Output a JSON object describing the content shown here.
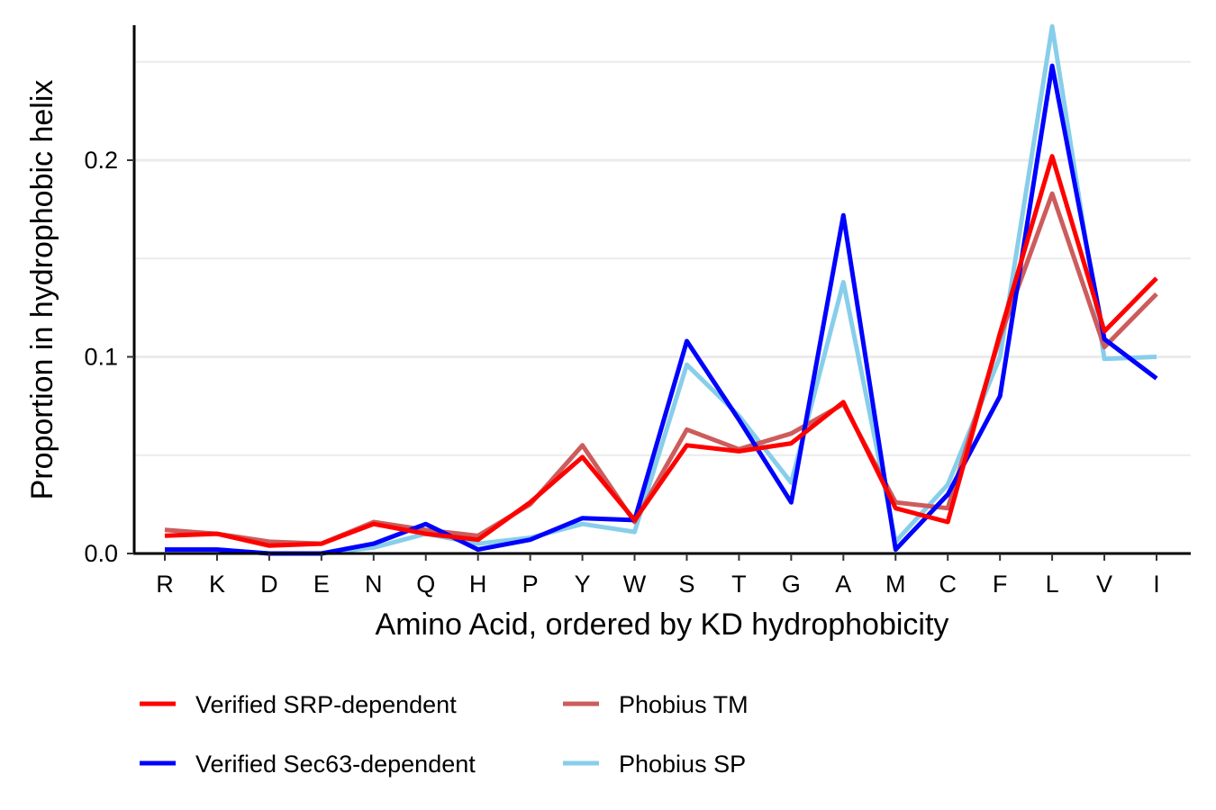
{
  "chart_data": {
    "type": "line",
    "xlabel": "Amino Acid, ordered by KD hydrophobicity",
    "ylabel": "Proportion in hydrophobic helix",
    "categories": [
      "R",
      "K",
      "D",
      "E",
      "N",
      "Q",
      "H",
      "P",
      "Y",
      "W",
      "S",
      "T",
      "G",
      "A",
      "M",
      "C",
      "F",
      "L",
      "V",
      "I"
    ],
    "ylim": [
      0,
      0.27
    ],
    "yticks": [
      0.0,
      0.1,
      0.2
    ],
    "ytick_labels": [
      "0.0",
      "0.1",
      "0.2"
    ],
    "grid": "horizontal major and minor",
    "legend_position": "bottom",
    "series": [
      {
        "name": "Phobius SP",
        "color": "#87CEEB",
        "values": [
          0.002,
          0.002,
          0.0,
          0.0,
          0.003,
          0.01,
          0.005,
          0.008,
          0.015,
          0.011,
          0.096,
          0.07,
          0.036,
          0.138,
          0.006,
          0.035,
          0.1,
          0.268,
          0.099,
          0.1
        ]
      },
      {
        "name": "Phobius TM",
        "color": "#CD5C5C",
        "values": [
          0.012,
          0.01,
          0.006,
          0.005,
          0.016,
          0.012,
          0.009,
          0.025,
          0.055,
          0.016,
          0.063,
          0.053,
          0.061,
          0.076,
          0.026,
          0.023,
          0.11,
          0.183,
          0.105,
          0.132
        ]
      },
      {
        "name": "Verified Sec63-dependent",
        "color": "#0000FF",
        "values": [
          0.002,
          0.002,
          0.0,
          0.0,
          0.005,
          0.015,
          0.002,
          0.007,
          0.018,
          0.017,
          0.108,
          0.068,
          0.026,
          0.172,
          0.002,
          0.03,
          0.08,
          0.248,
          0.109,
          0.089
        ]
      },
      {
        "name": "Verified SRP-dependent",
        "color": "#FF0000",
        "values": [
          0.009,
          0.01,
          0.004,
          0.005,
          0.015,
          0.01,
          0.007,
          0.026,
          0.049,
          0.017,
          0.055,
          0.052,
          0.056,
          0.077,
          0.023,
          0.016,
          0.112,
          0.202,
          0.113,
          0.14
        ]
      }
    ],
    "legend": [
      {
        "name": "Verified SRP-dependent",
        "color": "#FF0000"
      },
      {
        "name": "Phobius TM",
        "color": "#CD5C5C"
      },
      {
        "name": "Verified Sec63-dependent",
        "color": "#0000FF"
      },
      {
        "name": "Phobius SP",
        "color": "#87CEEB"
      }
    ]
  }
}
